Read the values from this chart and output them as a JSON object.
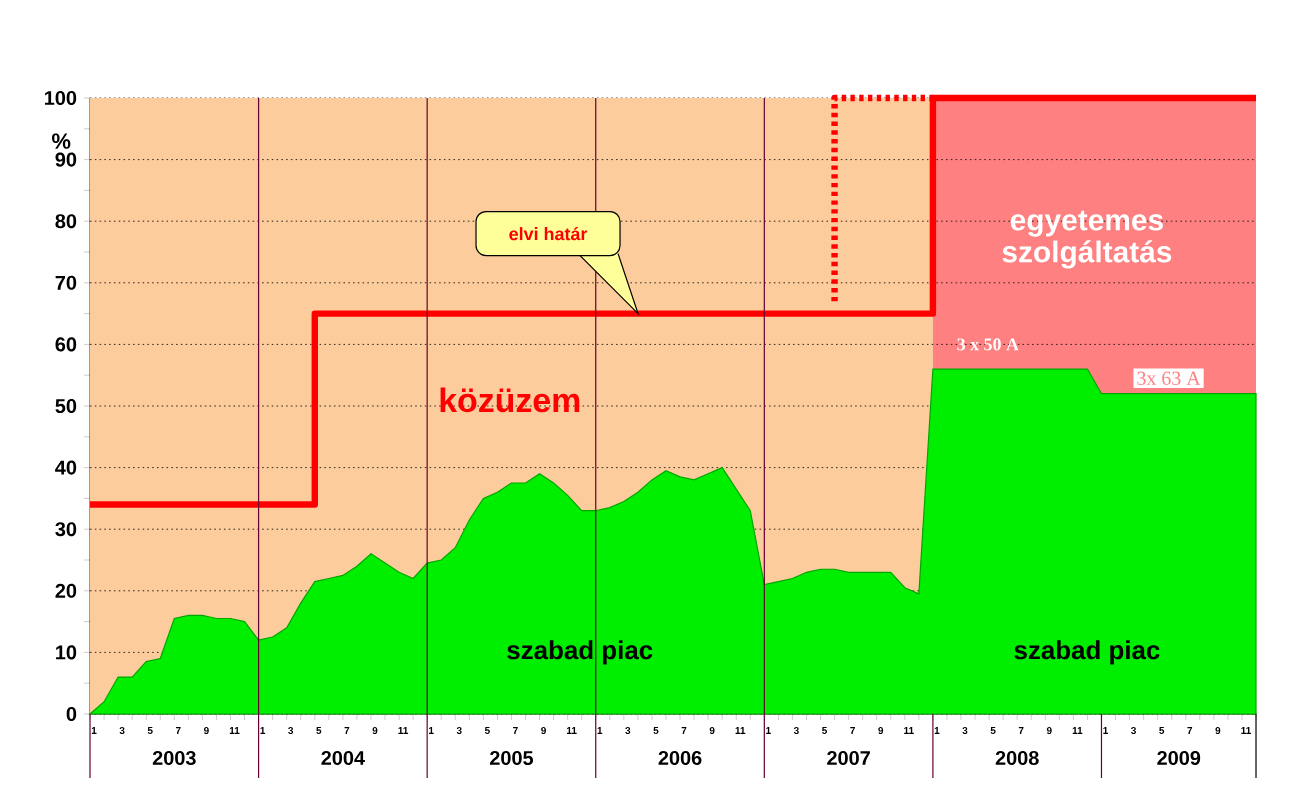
{
  "chart_data": {
    "type": "area",
    "x": [
      "2003-01",
      "2003-02",
      "2003-03",
      "2003-04",
      "2003-05",
      "2003-06",
      "2003-07",
      "2003-08",
      "2003-09",
      "2003-10",
      "2003-11",
      "2003-12",
      "2004-01",
      "2004-02",
      "2004-03",
      "2004-04",
      "2004-05",
      "2004-06",
      "2004-07",
      "2004-08",
      "2004-09",
      "2004-10",
      "2004-11",
      "2004-12",
      "2005-01",
      "2005-02",
      "2005-03",
      "2005-04",
      "2005-05",
      "2005-06",
      "2005-07",
      "2005-08",
      "2005-09",
      "2005-10",
      "2005-11",
      "2005-12",
      "2006-01",
      "2006-02",
      "2006-03",
      "2006-04",
      "2006-05",
      "2006-06",
      "2006-07",
      "2006-08",
      "2006-09",
      "2006-10",
      "2006-11",
      "2006-12",
      "2007-01",
      "2007-02",
      "2007-03",
      "2007-04",
      "2007-05",
      "2007-06",
      "2007-07",
      "2007-08",
      "2007-09",
      "2007-10",
      "2007-11",
      "2007-12",
      "2008-01",
      "2008-02",
      "2008-03",
      "2008-04",
      "2008-05",
      "2008-06",
      "2008-07",
      "2008-08",
      "2008-09",
      "2008-10",
      "2008-11",
      "2008-12",
      "2009-01",
      "2009-02",
      "2009-03",
      "2009-04",
      "2009-05",
      "2009-06",
      "2009-07",
      "2009-08",
      "2009-09",
      "2009-10",
      "2009-11",
      "2009-12"
    ],
    "ylabel": "%",
    "series": [
      {
        "color": "#00ee00",
        "values": [
          0,
          2,
          6,
          6,
          8.5,
          9,
          15.5,
          16,
          16,
          15.5,
          15.5,
          15,
          12,
          12.5,
          14,
          18,
          21.5,
          22,
          22.5,
          24,
          26,
          24.5,
          23,
          22,
          24.5,
          25,
          27,
          31.5,
          35,
          36,
          37.5,
          37.5,
          39,
          37.5,
          35.5,
          33,
          33,
          33.5,
          34.5,
          36,
          38,
          39.5,
          38.5,
          38,
          39,
          40,
          36.5,
          33,
          21,
          21.5,
          22,
          23,
          23.5,
          23.5,
          23,
          23,
          23,
          23,
          20.5,
          19.5,
          56,
          56,
          56,
          56,
          56,
          56,
          56,
          56,
          56,
          56,
          56,
          56,
          52,
          52,
          52,
          52,
          52,
          52,
          52,
          52,
          52,
          52,
          52,
          52
        ]
      },
      {
        "type": "line",
        "color": "#ff0000",
        "line_style": "solid",
        "x": [
          "2003-01",
          "2004-05",
          "2004-05",
          "2008-01",
          "2008-01",
          "2009-12"
        ],
        "values": [
          34,
          34,
          65,
          65,
          100,
          100
        ]
      },
      {
        "type": "line",
        "color": "#ff0000",
        "line_style": "dotted",
        "x": [
          "2007-06",
          "2007-06",
          "2008-01"
        ],
        "values": [
          67,
          100,
          100
        ]
      }
    ],
    "bands": [
      {
        "axis": "x",
        "from": "2003-01",
        "to": "2008-01",
        "color": "#fccc9c"
      },
      {
        "axis": "x",
        "from": "2008-01",
        "to": "2009-12",
        "color": "#ff8080"
      }
    ],
    "ref_lines": [
      {
        "axis": "x",
        "value": "2004-01",
        "color": "#660033"
      },
      {
        "axis": "x",
        "value": "2005-01",
        "color": "#660033"
      },
      {
        "axis": "x",
        "value": "2006-01",
        "color": "#660033"
      },
      {
        "axis": "x",
        "value": "2007-01",
        "color": "#660033"
      }
    ],
    "annotations": [
      "elvi határ",
      "közüzem",
      "szabad piac",
      "szabad piac",
      "egyetemes szolgáltatás",
      "3 x 50 A",
      "3x 63 A",
      "2003",
      "2004",
      "2005",
      "2006",
      "2007",
      "2008",
      "2009"
    ],
    "xlim": [
      "2003-01",
      "2009-12"
    ],
    "ylim": [
      0,
      100
    ],
    "xticks": [
      {
        "value": "2003-01",
        "label": "1"
      },
      {
        "value": "2003-02",
        "label": null
      },
      {
        "value": "2003-03",
        "label": "3"
      },
      {
        "value": "2003-04",
        "label": null
      },
      {
        "value": "2003-05",
        "label": "5"
      },
      {
        "value": "2003-06",
        "label": null
      },
      {
        "value": "2003-07",
        "label": "7"
      },
      {
        "value": "2003-08",
        "label": null
      },
      {
        "value": "2003-09",
        "label": "9"
      },
      {
        "value": "2003-10",
        "label": null
      },
      {
        "value": "2003-11",
        "label": "11"
      },
      {
        "value": "2003-12",
        "label": null
      },
      {
        "value": "2004-01",
        "label": "1"
      },
      {
        "value": "2004-02",
        "label": null
      },
      {
        "value": "2004-03",
        "label": "3"
      },
      {
        "value": "2004-04",
        "label": null
      },
      {
        "value": "2004-05",
        "label": "5"
      },
      {
        "value": "2004-06",
        "label": null
      },
      {
        "value": "2004-07",
        "label": "7"
      },
      {
        "value": "2004-08",
        "label": null
      },
      {
        "value": "2004-09",
        "label": "9"
      },
      {
        "value": "2004-10",
        "label": null
      },
      {
        "value": "2004-11",
        "label": "11"
      },
      {
        "value": "2004-12",
        "label": null
      },
      {
        "value": "2005-01",
        "label": "1"
      },
      {
        "value": "2005-02",
        "label": null
      },
      {
        "value": "2005-03",
        "label": "3"
      },
      {
        "value": "2005-04",
        "label": null
      },
      {
        "value": "2005-05",
        "label": "5"
      },
      {
        "value": "2005-06",
        "label": null
      },
      {
        "value": "2005-07",
        "label": "7"
      },
      {
        "value": "2005-08",
        "label": null
      },
      {
        "value": "2005-09",
        "label": "9"
      },
      {
        "value": "2005-10",
        "label": null
      },
      {
        "value": "2005-11",
        "label": "11"
      },
      {
        "value": "2005-12",
        "label": null
      },
      {
        "value": "2006-01",
        "label": "1"
      },
      {
        "value": "2006-02",
        "label": null
      },
      {
        "value": "2006-03",
        "label": "3"
      },
      {
        "value": "2006-04",
        "label": null
      },
      {
        "value": "2006-05",
        "label": "5"
      },
      {
        "value": "2006-06",
        "label": null
      },
      {
        "value": "2006-07",
        "label": "7"
      },
      {
        "value": "2006-08",
        "label": null
      },
      {
        "value": "2006-09",
        "label": "9"
      },
      {
        "value": "2006-10",
        "label": null
      },
      {
        "value": "2006-11",
        "label": "11"
      },
      {
        "value": "2006-12",
        "label": null
      },
      {
        "value": "2007-01",
        "label": "1"
      },
      {
        "value": "2007-02",
        "label": null
      },
      {
        "value": "2007-03",
        "label": "3"
      },
      {
        "value": "2007-04",
        "label": null
      },
      {
        "value": "2007-05",
        "label": "5"
      },
      {
        "value": "2007-06",
        "label": null
      },
      {
        "value": "2007-07",
        "label": "7"
      },
      {
        "value": "2007-08",
        "label": null
      },
      {
        "value": "2007-09",
        "label": "9"
      },
      {
        "value": "2007-10",
        "label": null
      },
      {
        "value": "2007-11",
        "label": "11"
      },
      {
        "value": "2007-12",
        "label": null
      },
      {
        "value": "2008-01",
        "label": "1"
      },
      {
        "value": "2008-02",
        "label": null
      },
      {
        "value": "2008-03",
        "label": "3"
      },
      {
        "value": "2008-04",
        "label": null
      },
      {
        "value": "2008-05",
        "label": "5"
      },
      {
        "value": "2008-06",
        "label": null
      },
      {
        "value": "2008-07",
        "label": "7"
      },
      {
        "value": "2008-08",
        "label": null
      },
      {
        "value": "2008-09",
        "label": "9"
      },
      {
        "value": "2008-10",
        "label": null
      },
      {
        "value": "2008-11",
        "label": "11"
      },
      {
        "value": "2008-12",
        "label": null
      },
      {
        "value": "2009-01",
        "label": "1"
      },
      {
        "value": "2009-02",
        "label": null
      },
      {
        "value": "2009-03",
        "label": "3"
      },
      {
        "value": "2009-04",
        "label": null
      },
      {
        "value": "2009-05",
        "label": "5"
      },
      {
        "value": "2009-06",
        "label": null
      },
      {
        "value": "2009-07",
        "label": "7"
      },
      {
        "value": "2009-08",
        "label": null
      },
      {
        "value": "2009-09",
        "label": "9"
      },
      {
        "value": "2009-10",
        "label": null
      },
      {
        "value": "2009-11",
        "label": "11"
      },
      {
        "value": "2009-12",
        "label": null
      }
    ],
    "yticks": [
      0,
      {
        "value": 5,
        "label": null
      },
      10,
      {
        "value": 15,
        "label": null
      },
      20,
      {
        "value": 25,
        "label": null
      },
      30,
      {
        "value": 35,
        "label": null
      },
      40,
      {
        "value": 45,
        "label": null
      },
      50,
      {
        "value": 55,
        "label": null
      },
      60,
      {
        "value": 65,
        "label": null
      },
      70,
      {
        "value": 75,
        "label": null
      },
      80,
      {
        "value": 85,
        "label": null
      },
      90,
      {
        "value": 95,
        "label": null
      },
      100
    ],
    "grid": "y"
  }
}
